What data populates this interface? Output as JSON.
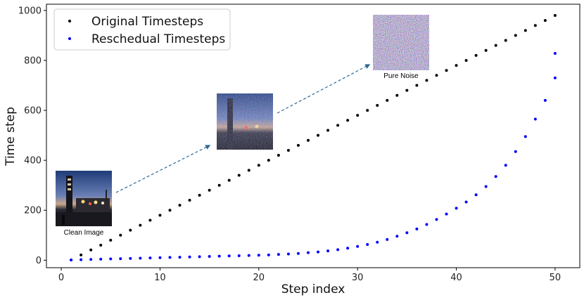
{
  "chart_data": {
    "type": "scatter",
    "title": "",
    "xlabel": "Step index",
    "ylabel": "Time step",
    "xlim": [
      -1.5,
      52.5
    ],
    "ylim": [
      -30,
      1025
    ],
    "xticks": [
      0,
      10,
      20,
      30,
      40,
      50
    ],
    "yticks": [
      0,
      200,
      400,
      600,
      800,
      1000
    ],
    "grid": false,
    "legend_position": "top-left",
    "series": [
      {
        "name": "Original Timesteps",
        "color": "#000000",
        "x": [
          1,
          2,
          3,
          4,
          5,
          6,
          7,
          8,
          9,
          10,
          11,
          12,
          13,
          14,
          15,
          16,
          17,
          18,
          19,
          20,
          21,
          22,
          23,
          24,
          25,
          26,
          27,
          28,
          29,
          30,
          31,
          32,
          33,
          34,
          35,
          36,
          37,
          38,
          39,
          40,
          41,
          42,
          43,
          44,
          45,
          46,
          47,
          48,
          49,
          50
        ],
        "y": [
          1,
          21,
          41,
          60,
          80,
          100,
          120,
          140,
          160,
          180,
          200,
          220,
          240,
          260,
          280,
          300,
          320,
          340,
          360,
          380,
          400,
          420,
          440,
          460,
          480,
          500,
          520,
          540,
          560,
          580,
          600,
          620,
          640,
          660,
          680,
          700,
          720,
          740,
          760,
          780,
          800,
          820,
          840,
          860,
          880,
          900,
          920,
          940,
          960,
          980
        ]
      },
      {
        "name": "Reschedual Timesteps",
        "color": "#0000ff",
        "x": [
          1,
          2,
          3,
          4,
          5,
          6,
          7,
          8,
          9,
          10,
          11,
          12,
          13,
          14,
          15,
          16,
          17,
          18,
          19,
          20,
          21,
          22,
          23,
          24,
          25,
          26,
          27,
          28,
          29,
          30,
          31,
          32,
          33,
          34,
          35,
          36,
          37,
          38,
          39,
          40,
          41,
          42,
          43,
          44,
          45,
          46,
          47,
          48,
          49,
          50
        ],
        "y": [
          1,
          2,
          3,
          4,
          5,
          6,
          7,
          8,
          9,
          10,
          11,
          12,
          13,
          14,
          15,
          16,
          17,
          18,
          19,
          20,
          21,
          23,
          25,
          27,
          30,
          33,
          37,
          42,
          48,
          55,
          63,
          72,
          83,
          96,
          110,
          125,
          143,
          163,
          185,
          208,
          233,
          262,
          295,
          335,
          380,
          435,
          495,
          565,
          640,
          730
        ]
      }
    ],
    "extra_points": [
      {
        "series": "Reschedual Timesteps",
        "x": 50,
        "y": 828
      }
    ],
    "annotations": {
      "images": [
        {
          "id": "clean",
          "caption": "Clean Image"
        },
        {
          "id": "noisy",
          "caption": ""
        },
        {
          "id": "noise",
          "caption": "Pure Noise"
        }
      ]
    }
  }
}
